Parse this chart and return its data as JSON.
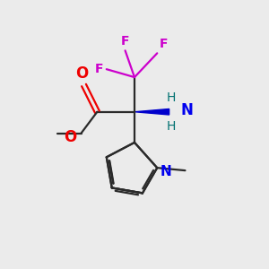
{
  "bg_color": "#ebebeb",
  "bond_color": "#2a2a2a",
  "O_color": "#ee0000",
  "N_color": "#0000ee",
  "F_color": "#cc00cc",
  "NH_color": "#007070",
  "wedge_color": "#0000cc",
  "figsize": [
    3.0,
    3.0
  ],
  "dpi": 100,
  "xlim": [
    0,
    10
  ],
  "ylim": [
    0,
    10
  ]
}
